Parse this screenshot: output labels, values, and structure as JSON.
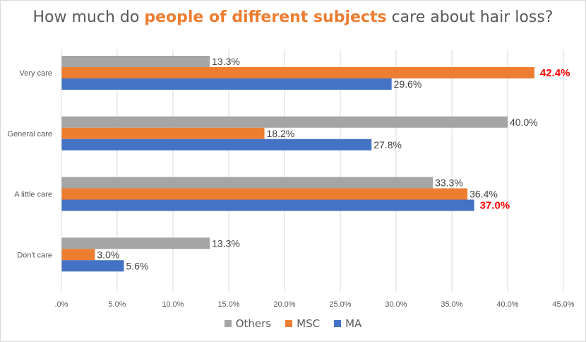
{
  "chart_data": {
    "type": "bar",
    "orientation": "horizontal",
    "title_parts": [
      {
        "text": "How much do ",
        "highlight": false
      },
      {
        "text": "people of different subjects",
        "highlight": true
      },
      {
        "text": " care about hair loss?",
        "highlight": false
      }
    ],
    "categories": [
      "Very care",
      "General care",
      "A little care",
      "Don't care"
    ],
    "series": [
      {
        "name": "Others",
        "color": "#a5a5a5",
        "values": [
          13.3,
          40.0,
          33.3,
          13.3
        ],
        "labels": [
          "13.3%",
          "40.0%",
          "33.3%",
          "13.3%"
        ]
      },
      {
        "name": "MSC",
        "color": "#ed7d31",
        "values": [
          42.4,
          18.2,
          36.4,
          3.0
        ],
        "labels": [
          "42.4%",
          "18.2%",
          "36.4%",
          "3.0%"
        ]
      },
      {
        "name": "MA",
        "color": "#4472c4",
        "values": [
          29.6,
          27.8,
          37.0,
          5.6
        ],
        "labels": [
          "29.6%",
          "27.8%",
          "37.0%",
          "5.6%"
        ]
      }
    ],
    "highlighted_labels": [
      {
        "series": 1,
        "category": 0
      },
      {
        "series": 2,
        "category": 2
      }
    ],
    "highlight_label_color": "#ff0000",
    "xlim": [
      0,
      45
    ],
    "xticks": [
      0,
      5,
      10,
      15,
      20,
      25,
      30,
      35,
      40,
      45
    ],
    "xtick_labels": [
      ".0%",
      "5.0%",
      "10.0%",
      "15.0%",
      "20.0%",
      "25.0%",
      "30.0%",
      "35.0%",
      "40.0%",
      "45.0%"
    ],
    "grid": true,
    "legend_position": "bottom"
  }
}
